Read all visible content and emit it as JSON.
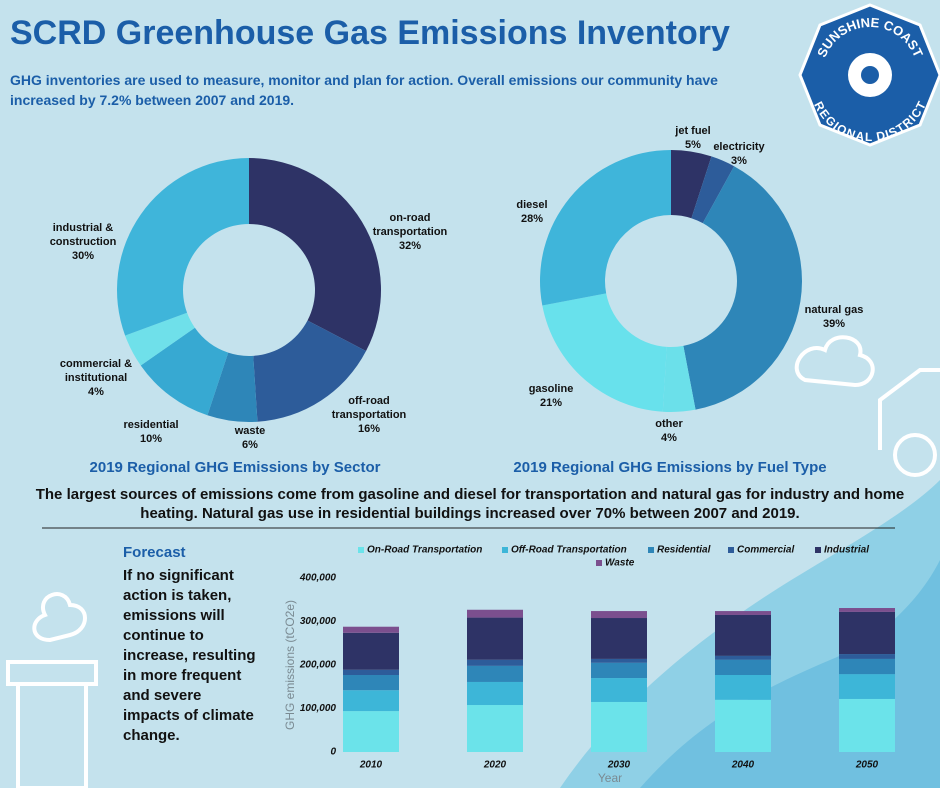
{
  "header": {
    "title": "SCRD Greenhouse Gas Emissions Inventory",
    "intro": "GHG inventories are used to measure, monitor and plan for action. Overall emissions our community have increased by 7.2% between 2007 and 2019."
  },
  "logo": {
    "top": "SUNSHINE COAST",
    "bottom": "REGIONAL DISTRICT"
  },
  "chart_data": [
    {
      "type": "donut",
      "title": "2019 Regional GHG Emissions by Sector",
      "categories": [
        "on-road transportation",
        "off-road transportation",
        "waste",
        "residential",
        "commercial & institutional",
        "industrial & construction"
      ],
      "values": [
        32,
        16,
        6,
        10,
        4,
        30
      ],
      "value_labels": [
        "32%",
        "16%",
        "6%",
        "10%",
        "4%",
        "30%"
      ],
      "colors": [
        "#2e3366",
        "#2d5c9a",
        "#2e86b8",
        "#37a9d2",
        "#6fe0ea",
        "#3fb5da"
      ]
    },
    {
      "type": "donut",
      "title": "2019 Regional GHG Emissions by Fuel Type",
      "categories": [
        "jet fuel",
        "electricity",
        "natural gas",
        "other",
        "gasoline",
        "diesel"
      ],
      "values": [
        5,
        3,
        39,
        4,
        21,
        28
      ],
      "value_labels": [
        "5%",
        "3%",
        "39%",
        "4%",
        "21%",
        "28%"
      ],
      "colors": [
        "#2e3366",
        "#2d5c9a",
        "#2e86b8",
        "#6be0ea",
        "#68e1ec",
        "#3fb5da"
      ]
    },
    {
      "type": "stacked-bar",
      "x_label": "Year",
      "y_label": "GHG emissions (tCO2e)",
      "categories": [
        "2010",
        "2020",
        "2030",
        "2040",
        "2050"
      ],
      "ylim": [
        0,
        400000
      ],
      "yticks": [
        0,
        {
          "value": 100000,
          "label": "100,000"
        },
        {
          "value": 200000,
          "label": "200,000"
        },
        {
          "value": 300000,
          "label": "300,000"
        },
        {
          "value": 400000,
          "label": "400,000"
        }
      ],
      "series": [
        {
          "name": "On-Road Transportation",
          "color": "#6be3ea",
          "values": [
            94000,
            108000,
            115000,
            120000,
            122000
          ]
        },
        {
          "name": "Off-Road Transportation",
          "color": "#3db6d8",
          "values": [
            48000,
            53000,
            55000,
            57000,
            57000
          ]
        },
        {
          "name": "Residential",
          "color": "#2e86b8",
          "values": [
            35000,
            37000,
            35000,
            35000,
            35000
          ]
        },
        {
          "name": "Commercial",
          "color": "#2d5c9a",
          "values": [
            12000,
            14000,
            9000,
            9000,
            11000
          ]
        },
        {
          "name": "Industrial",
          "color": "#2e3366",
          "values": [
            85000,
            97000,
            94000,
            94000,
            97000
          ]
        },
        {
          "name": "Waste",
          "color": "#7b4f8e",
          "values": [
            14000,
            18000,
            16000,
            9000,
            9000
          ]
        }
      ]
    }
  ],
  "summary": "The largest sources of emissions come from gasoline and diesel for transportation and natural gas for industry and home heating. Natural gas use in residential buildings increased over 70% between 2007 and 2019.",
  "forecast": {
    "heading": "Forecast",
    "text": "If no significant action is taken, emissions will continue to increase, resulting in more frequent and severe impacts of climate change."
  }
}
